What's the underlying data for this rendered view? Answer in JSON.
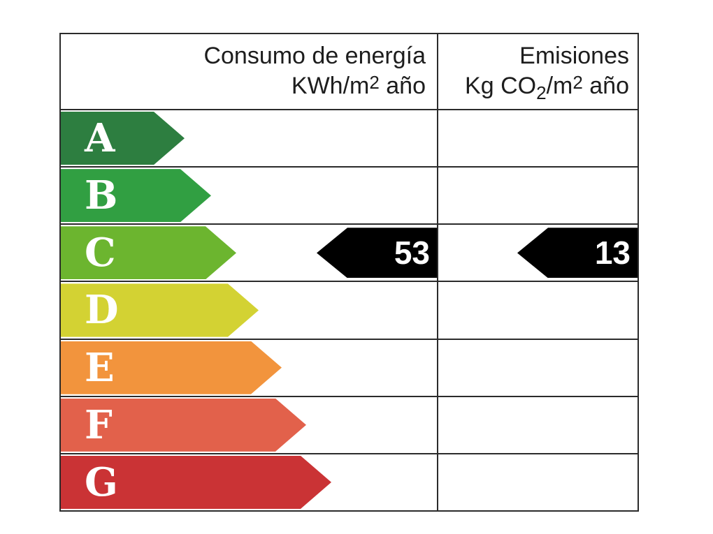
{
  "header": {
    "consumption": {
      "line1": "Consumo de energía",
      "unit_prefix": "KWh/m",
      "unit_sup": "2",
      "unit_suffix": " año"
    },
    "emissions": {
      "line1": "Emisiones",
      "unit_prefix": "Kg CO",
      "unit_sub": "2",
      "unit_mid": "/m",
      "unit_sup": "2",
      "unit_suffix": " año"
    }
  },
  "bands": [
    {
      "letter": "A",
      "color": "#2d7e40",
      "length": 177
    },
    {
      "letter": "B",
      "color": "#319f42",
      "length": 215
    },
    {
      "letter": "C",
      "color": "#6cb52f",
      "length": 251
    },
    {
      "letter": "D",
      "color": "#d3d233",
      "length": 283
    },
    {
      "letter": "E",
      "color": "#f2943d",
      "length": 316
    },
    {
      "letter": "F",
      "color": "#e2614b",
      "length": 351
    },
    {
      "letter": "G",
      "color": "#ca3335",
      "length": 387
    }
  ],
  "rating": {
    "letter": "C",
    "consumption_value": "53",
    "emissions_value": "13",
    "marker_color": "#000000",
    "marker_text_color": "#ffffff"
  },
  "colors": {
    "border": "#2b2b2b",
    "background": "#ffffff",
    "header_text": "#1d1d1d",
    "band_letter_text": "#ffffff"
  },
  "chart_data": {
    "type": "bar",
    "categories": [
      "A",
      "B",
      "C",
      "D",
      "E",
      "F",
      "G"
    ],
    "series": [
      {
        "name": "Consumo de energía KWh/m2 año",
        "values": [
          null,
          null,
          53,
          null,
          null,
          null,
          null
        ]
      },
      {
        "name": "Emisiones Kg CO2/m2 año",
        "values": [
          null,
          null,
          13,
          null,
          null,
          null,
          null
        ]
      }
    ],
    "rating": "C",
    "band_colors": [
      "#2d7e40",
      "#319f42",
      "#6cb52f",
      "#d3d233",
      "#f2943d",
      "#e2614b",
      "#ca3335"
    ],
    "legend_position": "none",
    "grid": "table-lines"
  }
}
